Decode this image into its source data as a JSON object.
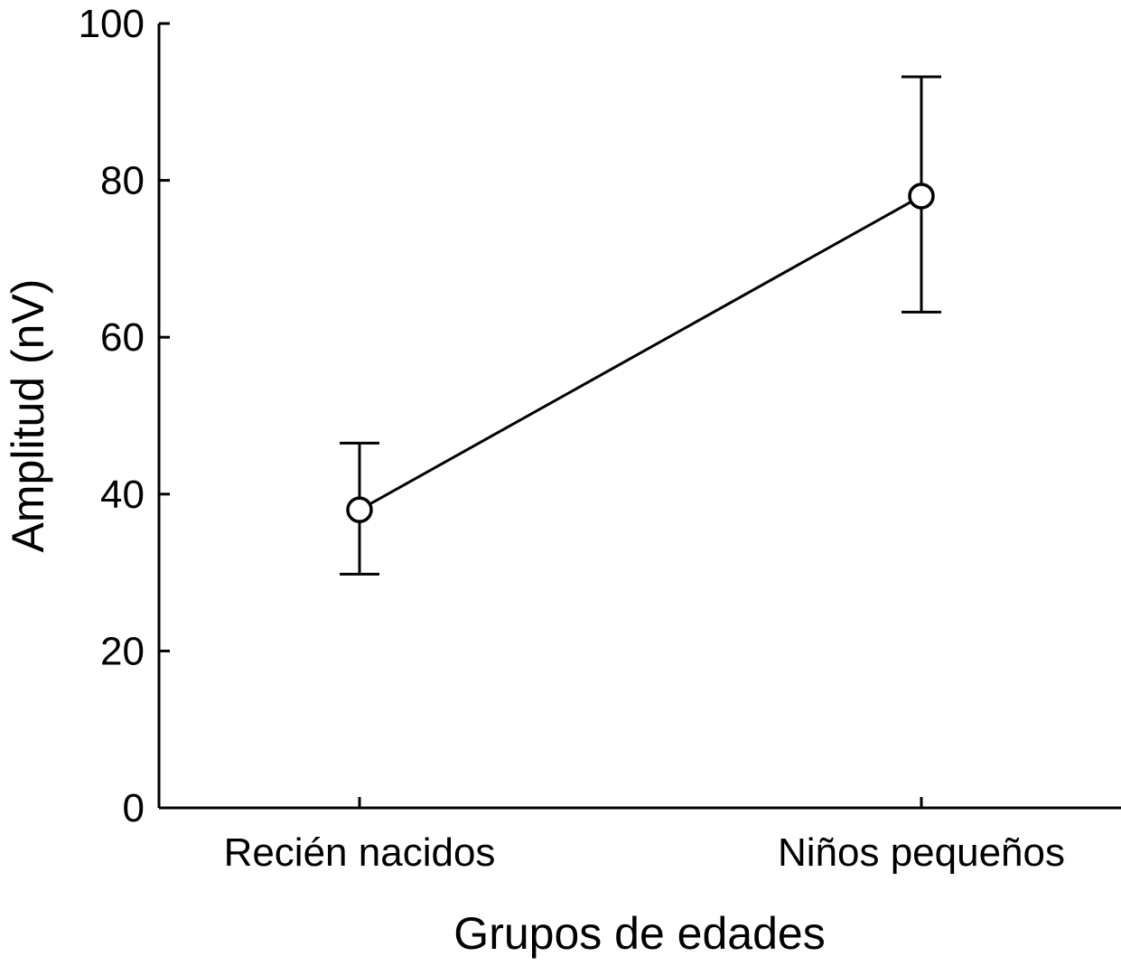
{
  "chart_data": {
    "type": "line",
    "title": "",
    "xlabel": "Grupos de edades",
    "ylabel": "Amplitud (nV)",
    "categories": [
      "Recién nacidos",
      "Niños pequeños"
    ],
    "ylim": [
      0,
      100
    ],
    "yticks": [
      "0",
      "20",
      "40",
      "60",
      "80",
      "100"
    ],
    "series": [
      {
        "values": [
          38,
          78
        ],
        "error_low": [
          29.8,
          63.2
        ],
        "error_high": [
          46.5,
          93.2
        ],
        "marker": "open-circle"
      }
    ],
    "grid": false,
    "legend": "none"
  }
}
